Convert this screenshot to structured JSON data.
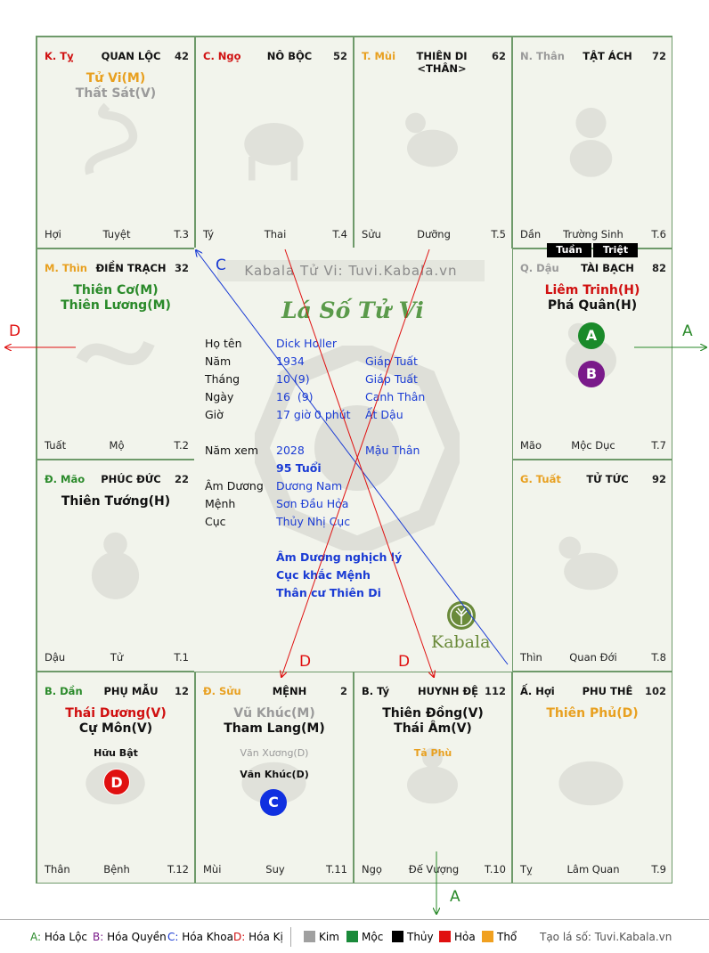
{
  "colors": {
    "loc": "#2a8a2a",
    "quyen": "#7a1a8a",
    "khoa": "#1a3bd4",
    "ki": "#d01010",
    "kim": "#a0a0a0",
    "moc": "#1a8a3a",
    "thuy": "#000000",
    "hoa": "#e01010",
    "tho": "#f0a020",
    "star_red": "#d01010",
    "star_green": "#2a8a2a",
    "star_gold": "#e8a020",
    "star_grey": "#9a9a9a",
    "star_black": "#111111"
  },
  "cells": {
    "ty_k": {
      "can": "K. Tỵ",
      "name": "QUAN LỘC",
      "age": "42",
      "s1": "Tử Vi(M)",
      "s2": "Thất Sát(V)",
      "f1": "Hợi",
      "f2": "Tuyệt",
      "f3": "T.3"
    },
    "ngo": {
      "can": "C. Ngọ",
      "name": "NÔ BỘC",
      "age": "52",
      "f1": "Tý",
      "f2": "Thai",
      "f3": "T.4"
    },
    "mui": {
      "can": "T. Mùi",
      "name": "THIÊN DI <THÂN>",
      "age": "62",
      "f1": "Sửu",
      "f2": "Dưỡng",
      "f3": "T.5"
    },
    "than": {
      "can": "N. Thân",
      "name": "TẬT ÁCH",
      "age": "72",
      "f1": "Dần",
      "f2": "Trường Sinh",
      "f3": "T.6"
    },
    "thin": {
      "can": "M. Thìn",
      "name": "ĐIỀN TRẠCH",
      "age": "32",
      "s1": "Thiên Cơ(M)",
      "s2": "Thiên Lương(M)",
      "f1": "Tuất",
      "f2": "Mộ",
      "f3": "T.2"
    },
    "dau": {
      "can": "Q. Dậu",
      "name": "TÀI BẠCH",
      "age": "82",
      "s1": "Liêm Trinh(H)",
      "s2": "Phá Quân(H)",
      "f1": "Mão",
      "f2": "Mộc Dục",
      "f3": "T.7",
      "tuan": "Tuần",
      "triet": "Triệt"
    },
    "mao": {
      "can": "Đ. Mão",
      "name": "PHÚC ĐỨC",
      "age": "22",
      "s1": "Thiên Tướng(H)",
      "f1": "Dậu",
      "f2": "Tử",
      "f3": "T.1"
    },
    "tuat": {
      "can": "G. Tuất",
      "name": "TỬ TỨC",
      "age": "92",
      "f1": "Thìn",
      "f2": "Quan Đới",
      "f3": "T.8"
    },
    "dan": {
      "can": "B. Dần",
      "name": "PHỤ MẪU",
      "age": "12",
      "s1": "Thái Dương(V)",
      "s2": "Cự Môn(V)",
      "m1": "Hữu Bật",
      "f1": "Thân",
      "f2": "Bệnh",
      "f3": "T.12"
    },
    "suu": {
      "can": "Đ. Sửu",
      "name": "MỆNH",
      "age": "2",
      "s1": "Vũ Khúc(M)",
      "s2": "Tham Lang(M)",
      "m1": "Văn Xương(D)",
      "m2": "Văn Khúc(D)",
      "f1": "Mùi",
      "f2": "Suy",
      "f3": "T.11"
    },
    "ti": {
      "can": "B. Tý",
      "name": "HUYNH ĐỆ",
      "age": "112",
      "s1": "Thiên Đồng(V)",
      "s2": "Thái Âm(V)",
      "m1": "Tả Phù",
      "f1": "Ngọ",
      "f2": "Đế Vượng",
      "f3": "T.10"
    },
    "hoi": {
      "can": "Ấ. Hợi",
      "name": "PHU THÊ",
      "age": "102",
      "s1": "Thiên Phủ(D)",
      "f1": "Tỵ",
      "f2": "Lâm Quan",
      "f3": "T.9"
    }
  },
  "badges": {
    "a": "A",
    "b": "B",
    "c": "C",
    "d": "D"
  },
  "center": {
    "watermark": "Kabala Tử Vi: Tuvi.Kabala.vn",
    "title": "Lá Số Tử Vi",
    "ho_ten_lbl": "Họ tên",
    "ho_ten": "Dick Holler",
    "nam_lbl": "Năm",
    "nam": "1934",
    "nam_cc": "Giáp Tuất",
    "thang_lbl": "Tháng",
    "thang": "10 (9)",
    "thang_cc": "Giáp Tuất",
    "ngay_lbl": "Ngày",
    "ngay": "16  (9)",
    "ngay_cc": "Canh Thân",
    "gio_lbl": "Giờ",
    "gio": "17 giờ 0 phút",
    "gio_cc": "Ất Dậu",
    "namxem_lbl": "Năm xem",
    "namxem": "2028",
    "namxem_cc": "Mậu Thân",
    "tuoi": "95 Tuổi",
    "amduong_lbl": "Âm Dương",
    "amduong": "Dương Nam",
    "menh_lbl": "Mệnh",
    "menh": "Sơn Đầu Hỏa",
    "cuc_lbl": "Cục",
    "cuc": "Thủy Nhị Cục",
    "note1": "Âm Dương nghịch lý",
    "note2": "Cục khắc Mệnh",
    "note3": "Thân cư Thiên Di",
    "logo": "Kabala"
  },
  "arrows": {
    "c": "C",
    "d_left": "D",
    "a_right": "A",
    "d1": "D",
    "d2": "D",
    "a_bottom": "A"
  },
  "legend": {
    "a": "A:",
    "a_t": "Hóa Lộc",
    "b": "B:",
    "b_t": "Hóa Quyền",
    "c": "C:",
    "c_t": "Hóa Khoa",
    "d": "D:",
    "d_t": "Hóa Kị",
    "kim": "Kim",
    "moc": "Mộc",
    "thuy": "Thủy",
    "hoa": "Hỏa",
    "tho": "Thổ",
    "site": "Tạo lá số: Tuvi.Kabala.vn"
  }
}
